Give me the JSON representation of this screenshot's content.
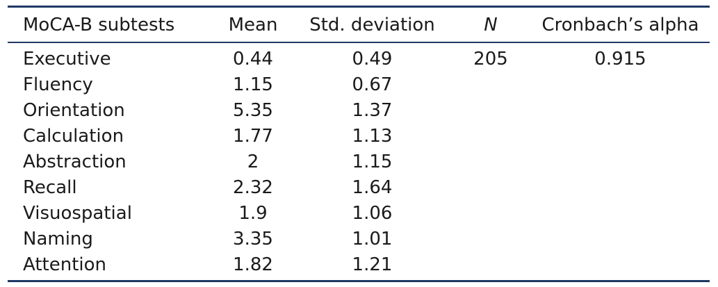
{
  "table": {
    "columns": [
      "MoCA-B subtests",
      "Mean",
      "Std. deviation",
      "N",
      "Cronbach’s alpha"
    ],
    "rows": [
      {
        "subtest": "Executive",
        "mean": "0.44",
        "sd": "0.49",
        "n": "205",
        "alpha": "0.915"
      },
      {
        "subtest": "Fluency",
        "mean": "1.15",
        "sd": "0.67",
        "n": "",
        "alpha": ""
      },
      {
        "subtest": "Orientation",
        "mean": "5.35",
        "sd": "1.37",
        "n": "",
        "alpha": ""
      },
      {
        "subtest": "Calculation",
        "mean": "1.77",
        "sd": "1.13",
        "n": "",
        "alpha": ""
      },
      {
        "subtest": "Abstraction",
        "mean": "2",
        "sd": "1.15",
        "n": "",
        "alpha": ""
      },
      {
        "subtest": "Recall",
        "mean": "2.32",
        "sd": "1.64",
        "n": "",
        "alpha": ""
      },
      {
        "subtest": "Visuospatial",
        "mean": "1.9",
        "sd": "1.06",
        "n": "",
        "alpha": ""
      },
      {
        "subtest": "Naming",
        "mean": "3.35",
        "sd": "1.01",
        "n": "",
        "alpha": ""
      },
      {
        "subtest": "Attention",
        "mean": "1.82",
        "sd": "1.21",
        "n": "",
        "alpha": ""
      }
    ]
  },
  "colors": {
    "rule": "#1f3864",
    "text": "#1a1a1a"
  }
}
